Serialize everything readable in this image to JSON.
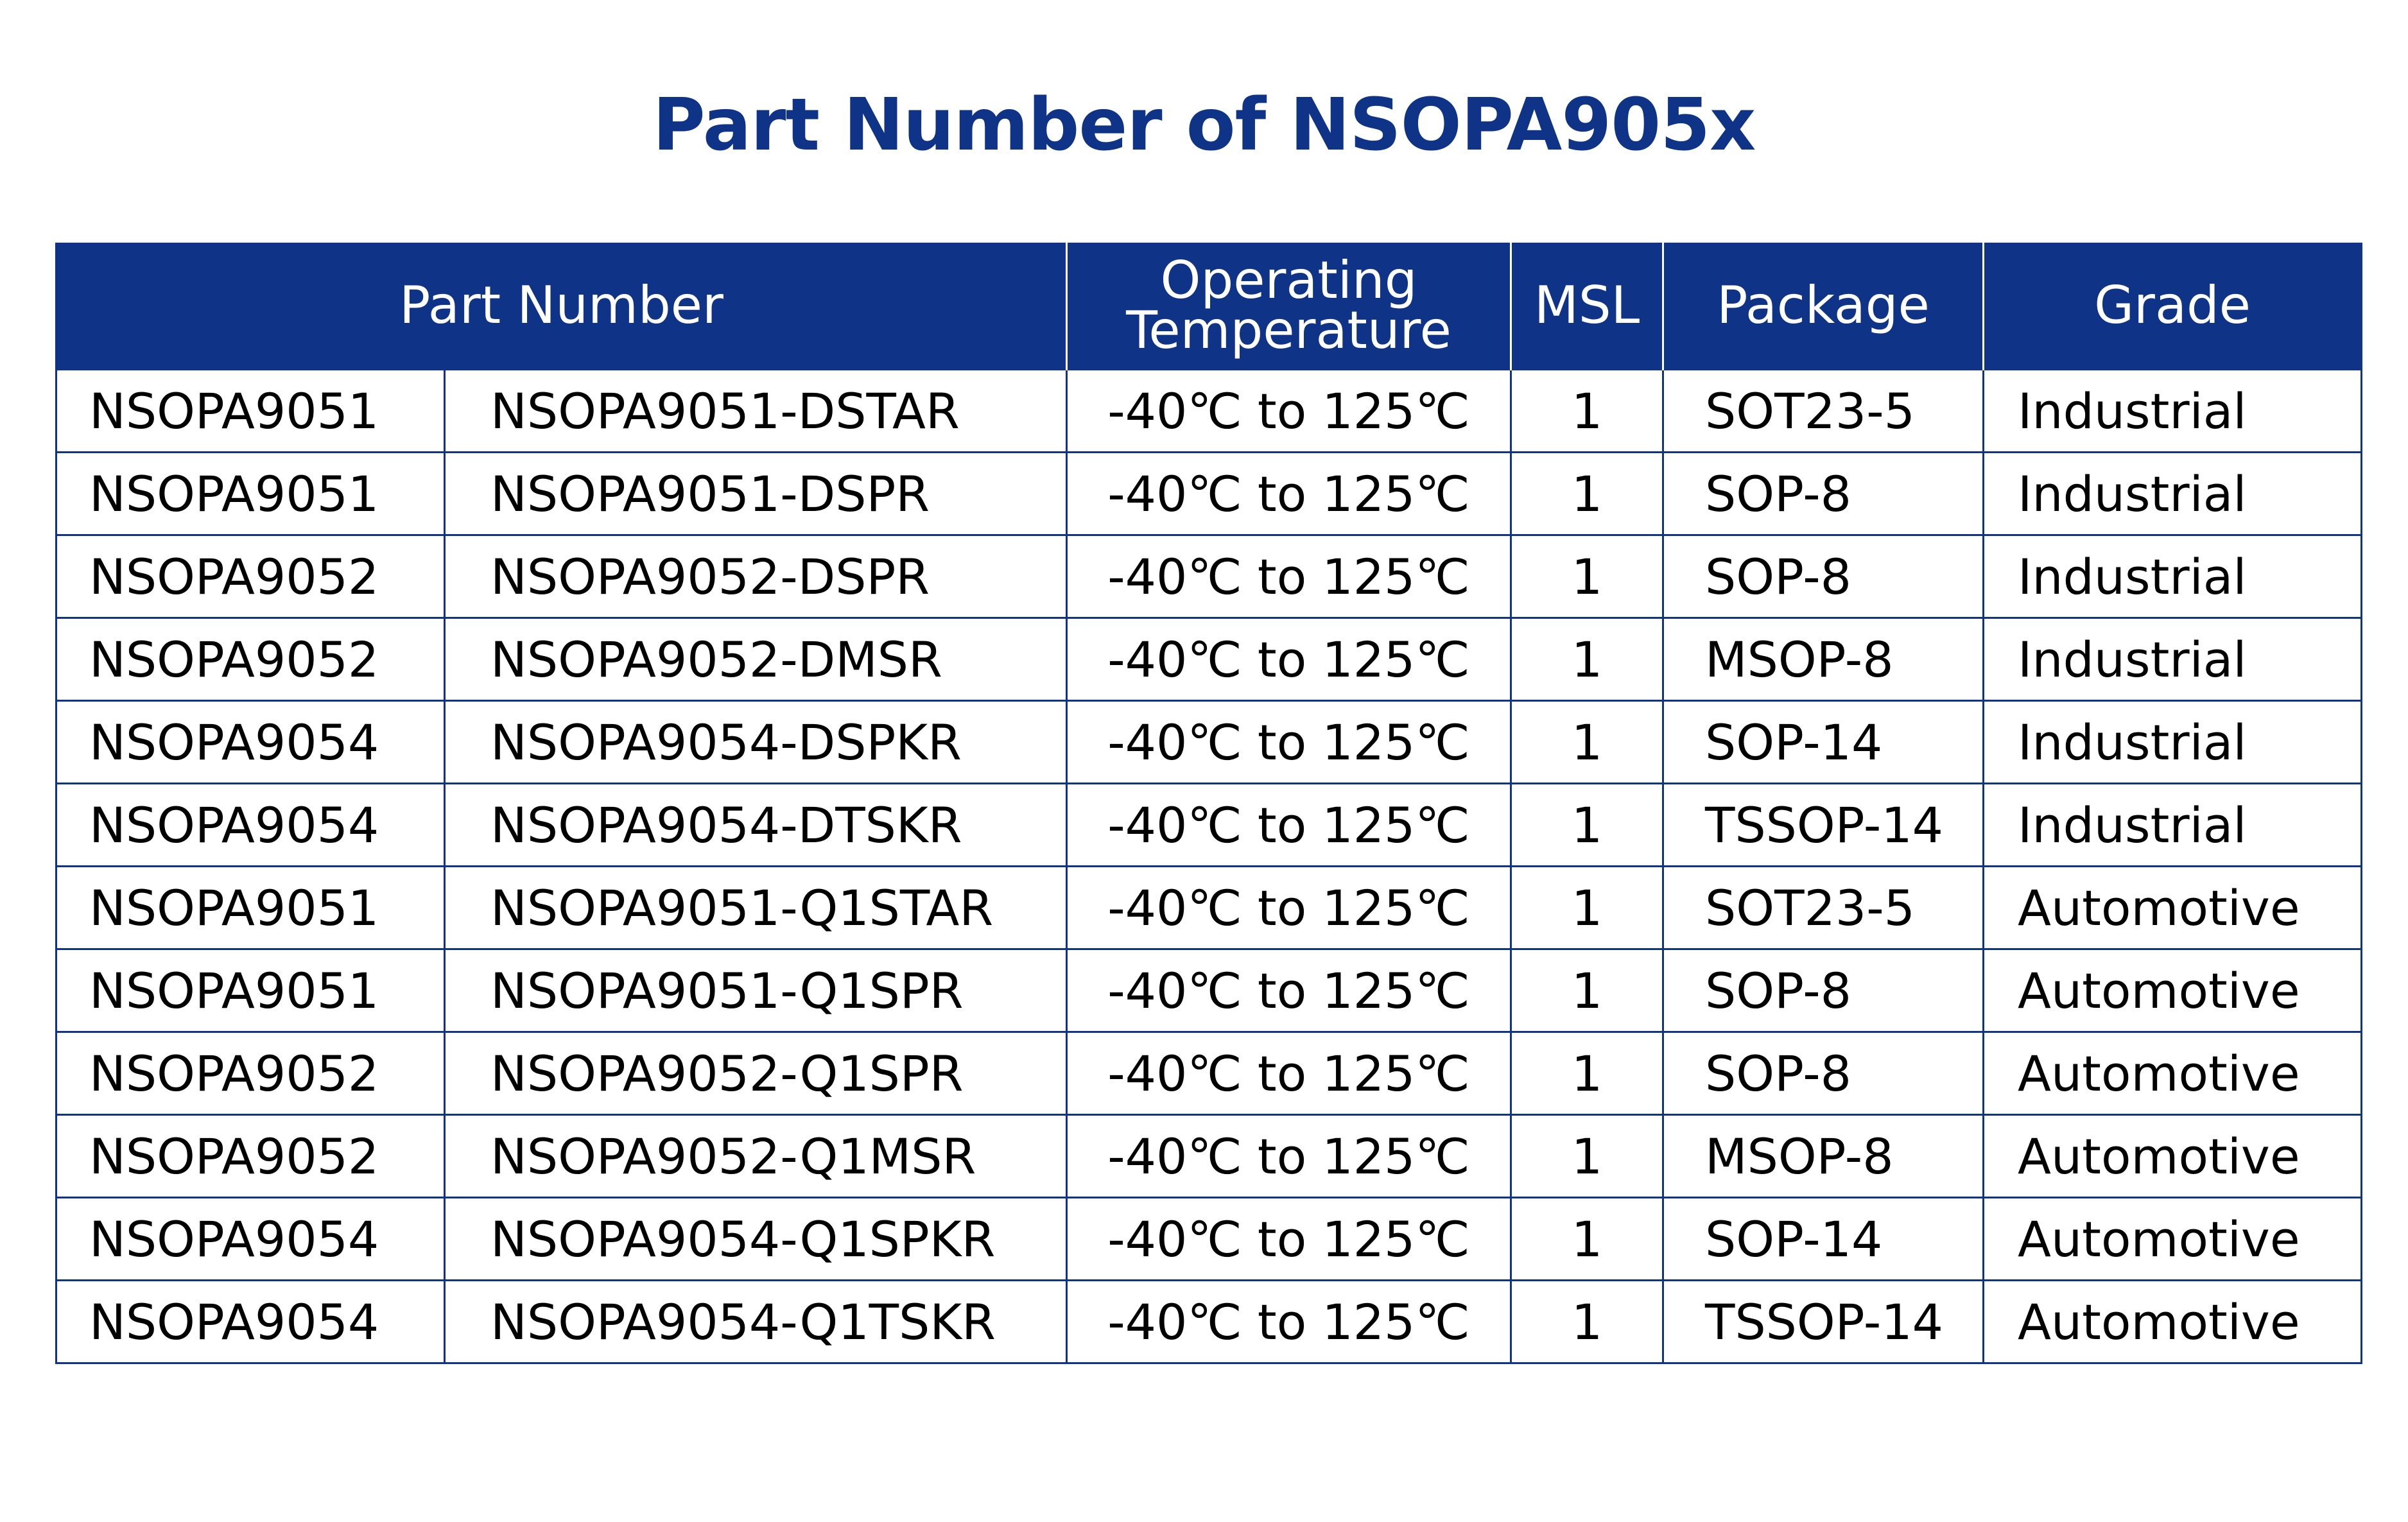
{
  "title": "Part Number of NSOPA905x",
  "colors": {
    "header_bg": "#0f3386",
    "title": "#0f3386",
    "border": "#0f3386"
  },
  "table": {
    "headers": [
      "Part Number",
      "Operating Temperature",
      "MSL",
      "Package",
      "Grade"
    ],
    "rows": [
      [
        "NSOPA9051",
        "NSOPA9051-DSTAR",
        "-40℃ to 125℃",
        "1",
        "SOT23-5",
        "Industrial"
      ],
      [
        "NSOPA9051",
        "NSOPA9051-DSPR",
        "-40℃ to 125℃",
        "1",
        "SOP-8",
        "Industrial"
      ],
      [
        "NSOPA9052",
        "NSOPA9052-DSPR",
        "-40℃ to 125℃",
        "1",
        "SOP-8",
        "Industrial"
      ],
      [
        "NSOPA9052",
        "NSOPA9052-DMSR",
        "-40℃ to 125℃",
        "1",
        "MSOP-8",
        "Industrial"
      ],
      [
        "NSOPA9054",
        "NSOPA9054-DSPKR",
        "-40℃ to 125℃",
        "1",
        "SOP-14",
        "Industrial"
      ],
      [
        "NSOPA9054",
        "NSOPA9054-DTSKR",
        "-40℃ to 125℃",
        "1",
        "TSSOP-14",
        "Industrial"
      ],
      [
        "NSOPA9051",
        "NSOPA9051-Q1STAR",
        "-40℃ to 125℃",
        "1",
        "SOT23-5",
        "Automotive"
      ],
      [
        "NSOPA9051",
        "NSOPA9051-Q1SPR",
        "-40℃ to 125℃",
        "1",
        "SOP-8",
        "Automotive"
      ],
      [
        "NSOPA9052",
        "NSOPA9052-Q1SPR",
        "-40℃ to 125℃",
        "1",
        "SOP-8",
        "Automotive"
      ],
      [
        "NSOPA9052",
        "NSOPA9052-Q1MSR",
        "-40℃ to 125℃",
        "1",
        "MSOP-8",
        "Automotive"
      ],
      [
        "NSOPA9054",
        "NSOPA9054-Q1SPKR",
        "-40℃ to 125℃",
        "1",
        "SOP-14",
        "Automotive"
      ],
      [
        "NSOPA9054",
        "NSOPA9054-Q1TSKR",
        "-40℃ to 125℃",
        "1",
        "TSSOP-14",
        "Automotive"
      ]
    ]
  }
}
